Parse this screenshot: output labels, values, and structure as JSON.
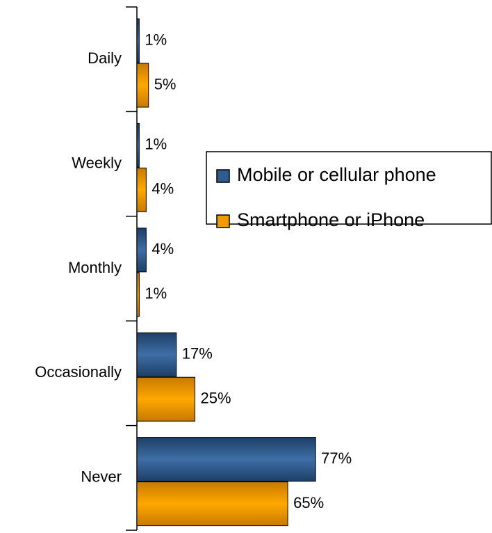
{
  "chart_data": {
    "type": "bar",
    "orientation": "horizontal",
    "categories": [
      "Daily",
      "Weekly",
      "Monthly",
      "Occasionally",
      "Never"
    ],
    "series": [
      {
        "name": "Mobile or cellular phone",
        "color": "#2e5c8e",
        "values": [
          1,
          1,
          4,
          17,
          77
        ],
        "value_labels": [
          "1%",
          "1%",
          "4%",
          "17%",
          "77%"
        ]
      },
      {
        "name": "Smartphone or iPhone",
        "color": "#f29b00",
        "values": [
          5,
          4,
          1,
          25,
          65
        ],
        "value_labels": [
          "5%",
          "4%",
          "1%",
          "25%",
          "65%"
        ]
      }
    ],
    "legend": "right"
  }
}
